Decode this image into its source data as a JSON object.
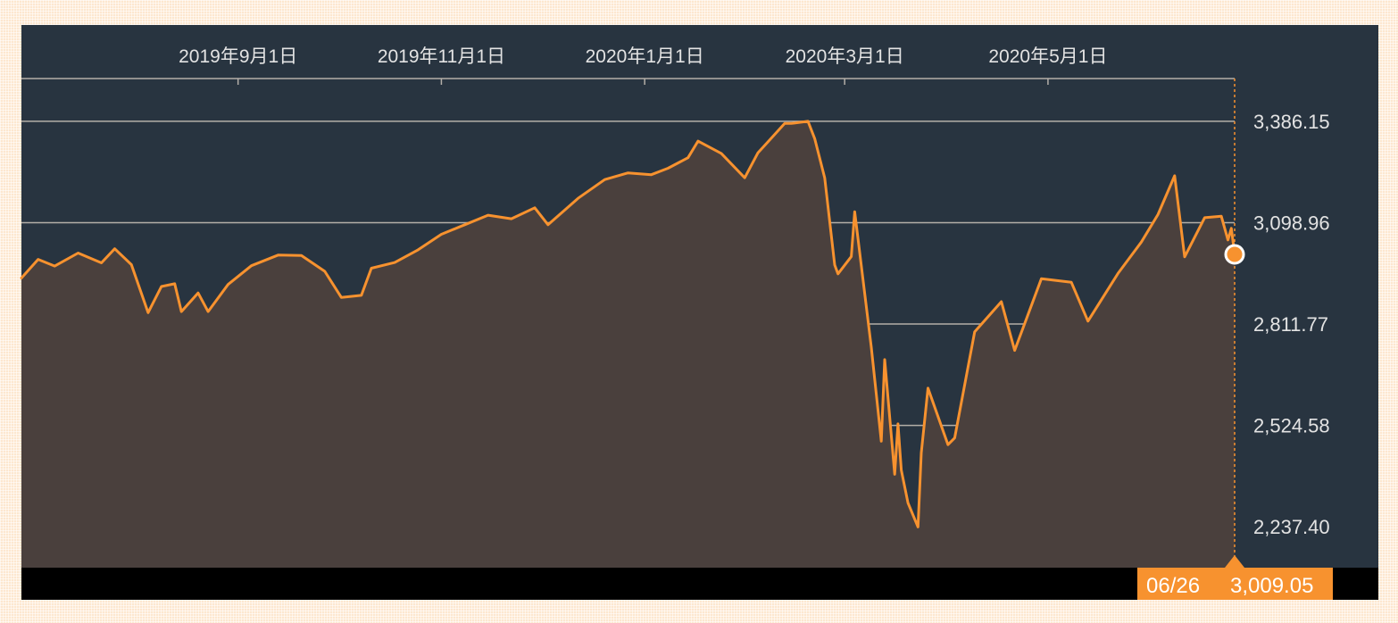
{
  "chart_data": {
    "type": "area",
    "x_ticks": [
      "2019年9月1日",
      "2019年11月1日",
      "2020年1月1日",
      "2020年3月1日",
      "2020年5月1日"
    ],
    "y_ticks": [
      "3,386.15",
      "3,098.96",
      "2,811.77",
      "2,524.58",
      "2,237.40"
    ],
    "y_tick_values": [
      3386.15,
      3098.96,
      2811.77,
      2524.58,
      2237.4
    ],
    "x_range": [
      "2019-06-28",
      "2020-06-26"
    ],
    "ylim": [
      2121.63,
      3507.23
    ],
    "grid": true,
    "series": [
      {
        "values": [
          [
            "2019-06-28",
            2942
          ],
          [
            "2019-07-03",
            2995
          ],
          [
            "2019-07-08",
            2976
          ],
          [
            "2019-07-15",
            3013
          ],
          [
            "2019-07-22",
            2985
          ],
          [
            "2019-07-26",
            3025
          ],
          [
            "2019-07-31",
            2980
          ],
          [
            "2019-08-05",
            2844
          ],
          [
            "2019-08-09",
            2918
          ],
          [
            "2019-08-13",
            2926
          ],
          [
            "2019-08-15",
            2847
          ],
          [
            "2019-08-20",
            2900
          ],
          [
            "2019-08-23",
            2847
          ],
          [
            "2019-08-29",
            2924
          ],
          [
            "2019-09-05",
            2977
          ],
          [
            "2019-09-13",
            3007
          ],
          [
            "2019-09-20",
            3006
          ],
          [
            "2019-09-27",
            2961
          ],
          [
            "2019-10-02",
            2887
          ],
          [
            "2019-10-08",
            2893
          ],
          [
            "2019-10-11",
            2970
          ],
          [
            "2019-10-18",
            2986
          ],
          [
            "2019-10-25",
            3022
          ],
          [
            "2019-11-01",
            3066
          ],
          [
            "2019-11-08",
            3093
          ],
          [
            "2019-11-15",
            3120
          ],
          [
            "2019-11-22",
            3110
          ],
          [
            "2019-11-29",
            3141
          ],
          [
            "2019-12-03",
            3093
          ],
          [
            "2019-12-12",
            3168
          ],
          [
            "2019-12-20",
            3221
          ],
          [
            "2019-12-27",
            3240
          ],
          [
            "2020-01-03",
            3235
          ],
          [
            "2020-01-08",
            3253
          ],
          [
            "2020-01-14",
            3283
          ],
          [
            "2020-01-17",
            3330
          ],
          [
            "2020-01-24",
            3295
          ],
          [
            "2020-01-31",
            3226
          ],
          [
            "2020-02-04",
            3297
          ],
          [
            "2020-02-07",
            3328
          ],
          [
            "2020-02-12",
            3380
          ],
          [
            "2020-02-14",
            3380
          ],
          [
            "2020-02-19",
            3386
          ],
          [
            "2020-02-21",
            3337
          ],
          [
            "2020-02-24",
            3226
          ],
          [
            "2020-02-27",
            2979
          ],
          [
            "2020-02-28",
            2954
          ],
          [
            "2020-03-03",
            3003
          ],
          [
            "2020-03-04",
            3130
          ],
          [
            "2020-03-09",
            2746
          ],
          [
            "2020-03-12",
            2480
          ],
          [
            "2020-03-13",
            2711
          ],
          [
            "2020-03-16",
            2386
          ],
          [
            "2020-03-17",
            2529
          ],
          [
            "2020-03-18",
            2398
          ],
          [
            "2020-03-20",
            2305
          ],
          [
            "2020-03-23",
            2237
          ],
          [
            "2020-03-24",
            2447
          ],
          [
            "2020-03-26",
            2630
          ],
          [
            "2020-04-01",
            2470
          ],
          [
            "2020-04-03",
            2489
          ],
          [
            "2020-04-09",
            2790
          ],
          [
            "2020-04-17",
            2875
          ],
          [
            "2020-04-21",
            2737
          ],
          [
            "2020-04-29",
            2940
          ],
          [
            "2020-05-08",
            2930
          ],
          [
            "2020-05-13",
            2820
          ],
          [
            "2020-05-22",
            2955
          ],
          [
            "2020-05-29",
            3044
          ],
          [
            "2020-06-03",
            3122
          ],
          [
            "2020-06-08",
            3232
          ],
          [
            "2020-06-11",
            3002
          ],
          [
            "2020-06-17",
            3113
          ],
          [
            "2020-06-22",
            3117
          ],
          [
            "2020-06-24",
            3050
          ],
          [
            "2020-06-25",
            3083
          ],
          [
            "2020-06-26",
            3009.05
          ]
        ]
      }
    ],
    "last_point": {
      "date_label": "06/26",
      "value_label": "3,009.05"
    },
    "colors": {
      "plot_background": "#283440",
      "area_fill": "#4a403d",
      "line": "#f7922f",
      "grid": "#b4afa8",
      "tick_text": "#e3e3e3",
      "marker": "#f7922f",
      "footer_bar": "#000000",
      "label_background": "#f7922f",
      "label_text": "#ffffff"
    }
  }
}
